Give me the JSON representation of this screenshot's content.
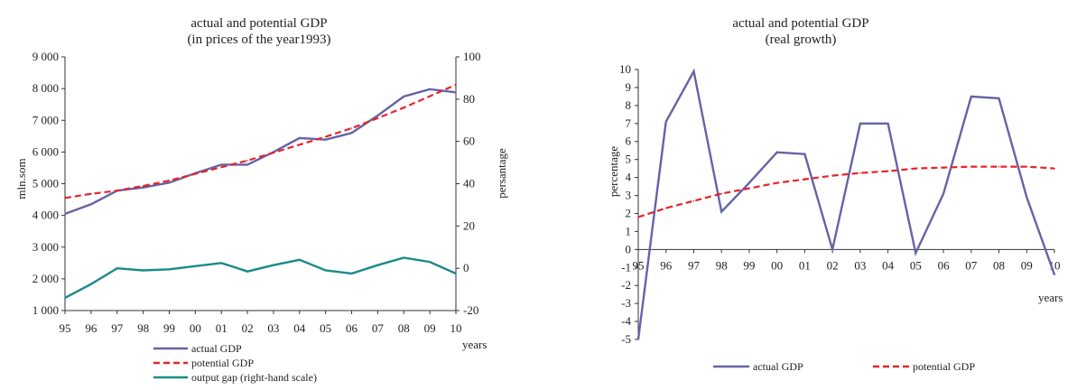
{
  "chart_data": [
    {
      "type": "line",
      "title": "actual and potential GDP",
      "subtitle": "(in prices of the year1993)",
      "xlabel": "years",
      "ylabel": "mln.som",
      "y2label": "persantage",
      "categories": [
        "95",
        "96",
        "97",
        "98",
        "99",
        "00",
        "01",
        "02",
        "03",
        "04",
        "05",
        "06",
        "07",
        "08",
        "09",
        "10"
      ],
      "ylim": [
        1000,
        9000
      ],
      "y_ticks": [
        "1 000",
        "2 000",
        "3 000",
        "4 000",
        "5 000",
        "6 000",
        "7 000",
        "8 000",
        "9 000"
      ],
      "y2lim": [
        -20,
        100
      ],
      "y2_ticks": [
        "-20",
        "0",
        "20",
        "40",
        "60",
        "80",
        "100"
      ],
      "legend_position": "bottom",
      "grid": false,
      "series": [
        {
          "name": "actual GDP",
          "axis": "left",
          "color": "#6464a6",
          "style": "solid",
          "values": [
            4050,
            4350,
            4780,
            4880,
            5030,
            5330,
            5600,
            5600,
            6000,
            6440,
            6390,
            6600,
            7150,
            7750,
            7980,
            7880
          ]
        },
        {
          "name": "potential GDP",
          "axis": "left",
          "color": "#e8232a",
          "style": "dashed",
          "values": [
            4550,
            4680,
            4780,
            4930,
            5100,
            5310,
            5520,
            5730,
            5980,
            6230,
            6480,
            6750,
            7070,
            7400,
            7760,
            8120
          ]
        },
        {
          "name": "output gap (right-hand scale)",
          "axis": "right",
          "color": "#1a8a8a",
          "style": "solid",
          "values": [
            -14,
            -7.5,
            0,
            -1,
            -0.5,
            1,
            2.5,
            -1.5,
            1.5,
            4,
            -1,
            -2.5,
            1.5,
            5,
            3,
            -2.5
          ]
        }
      ]
    },
    {
      "type": "line",
      "title": "actual and potential GDP",
      "subtitle": "(real growth)",
      "xlabel": "years",
      "ylabel": "percentage",
      "categories": [
        "95",
        "96",
        "97",
        "98",
        "99",
        "00",
        "01",
        "02",
        "03",
        "04",
        "05",
        "06",
        "07",
        "08",
        "09",
        "10"
      ],
      "ylim": [
        -5,
        10
      ],
      "y_ticks": [
        "-5",
        "-4",
        "-3",
        "-2",
        "-1",
        "0",
        "1",
        "2",
        "3",
        "4",
        "5",
        "6",
        "7",
        "8",
        "9",
        "10"
      ],
      "legend_position": "bottom",
      "grid": false,
      "series": [
        {
          "name": "actual GDP",
          "color": "#6464a6",
          "style": "solid",
          "values": [
            -5,
            7.1,
            9.9,
            2.1,
            3.7,
            5.4,
            5.3,
            0,
            7,
            7,
            -0.2,
            3.1,
            8.5,
            8.4,
            2.9,
            -1.4
          ]
        },
        {
          "name": "potential GDP",
          "color": "#e8232a",
          "style": "dashed",
          "values": [
            1.8,
            2.3,
            2.7,
            3.1,
            3.4,
            3.7,
            3.9,
            4.1,
            4.25,
            4.35,
            4.5,
            4.55,
            4.6,
            4.6,
            4.6,
            4.5
          ]
        }
      ]
    }
  ]
}
